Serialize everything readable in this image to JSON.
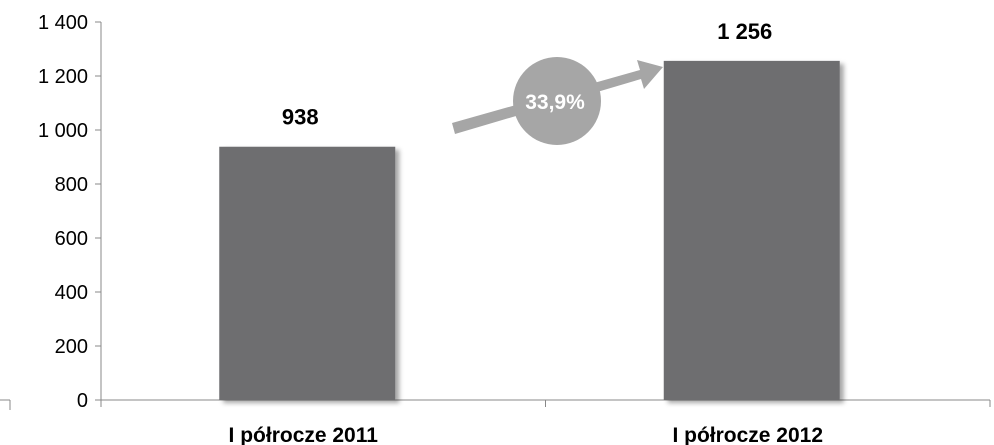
{
  "chart_data": {
    "type": "bar",
    "categories": [
      "I półrocze 2011",
      "I półrocze 2012"
    ],
    "values": [
      938,
      1256
    ],
    "data_labels": [
      "938",
      "1 256"
    ],
    "ylim": [
      0,
      1400
    ],
    "yticks": [
      0,
      200,
      400,
      600,
      800,
      1000,
      1200,
      1400
    ],
    "ytick_labels": [
      "0",
      "200",
      "400",
      "600",
      "800",
      "1 000",
      "1 200",
      "1 400"
    ],
    "title": "",
    "xlabel": "",
    "ylabel": "",
    "grid": false,
    "annotation": {
      "text": "33,9%",
      "type": "growth-arrow"
    },
    "colors": {
      "bar": "#6e6e70",
      "arrow": "#a6a6a6",
      "axis": "#888888"
    }
  }
}
